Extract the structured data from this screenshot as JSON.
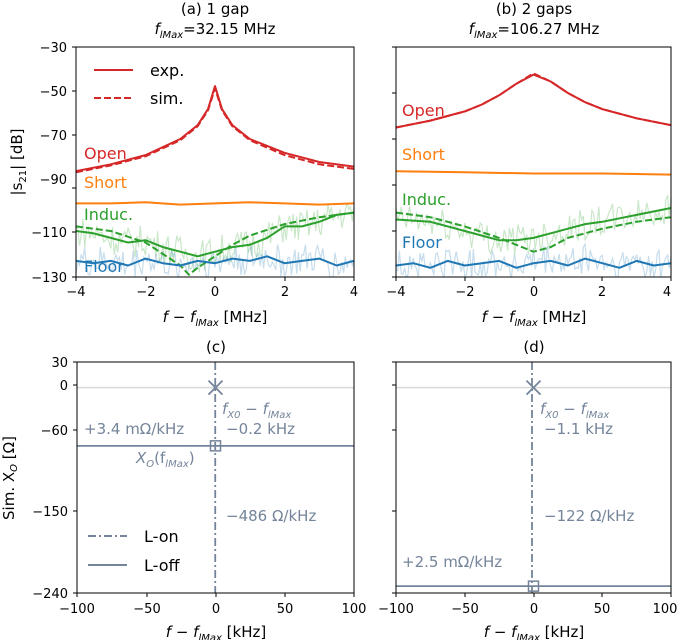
{
  "colors": {
    "open": "#d62728",
    "short": "#ff7f0e",
    "induc": "#2ca02c",
    "floor": "#1f77b4",
    "reactance": "#74849a",
    "zero_line": "#d9d9d9"
  },
  "chart_data": [
    {
      "id": "a",
      "type": "line",
      "title": "(a) 1 gap",
      "subtitle_prefix": "f",
      "subtitle_sub": "lMax",
      "subtitle_value": "=32.15 MHz",
      "xlabel": "f − f",
      "xlabel_sub": "lMax",
      "xlabel_unit": " [MHz]",
      "ylabel": "|s",
      "ylabel_sub": "21",
      "ylabel_unit": "| [dB]",
      "xlim": [
        -4,
        4
      ],
      "ylim": [
        -130,
        -30
      ],
      "xticks": [
        "−4",
        "−2",
        "0",
        "2",
        "4"
      ],
      "yticks": [
        "−30",
        "−50",
        "−70",
        "−90",
        "−110",
        "−130"
      ],
      "legend": [
        {
          "label": "exp.",
          "style": "solid"
        },
        {
          "label": "sim.",
          "style": "dashed"
        }
      ],
      "series_labels": [
        {
          "name": "open",
          "text": "Open"
        },
        {
          "name": "short",
          "text": "Short"
        },
        {
          "name": "induc",
          "text": "Induc."
        },
        {
          "name": "floor",
          "text": "Floor"
        }
      ],
      "series": [
        {
          "name": "Open exp.",
          "color_key": "open",
          "dash": false,
          "x": [
            -4,
            -3,
            -2,
            -1,
            -0.5,
            -0.2,
            0,
            0.2,
            0.5,
            1,
            2,
            3,
            4
          ],
          "y": [
            -84,
            -81,
            -77,
            -70,
            -64,
            -57,
            -47,
            -57,
            -64,
            -70,
            -76,
            -80,
            -82
          ]
        },
        {
          "name": "Open sim.",
          "color_key": "open",
          "dash": true,
          "x": [
            -4,
            -3,
            -2,
            -1,
            -0.5,
            -0.2,
            0,
            0.2,
            0.5,
            1,
            2,
            3,
            4
          ],
          "y": [
            -84.5,
            -81.5,
            -77.5,
            -70.5,
            -64.5,
            -57.5,
            -48,
            -57.5,
            -64.5,
            -70.5,
            -77,
            -81,
            -83
          ]
        },
        {
          "name": "Short exp.",
          "color_key": "short",
          "dash": false,
          "x": [
            -4,
            -3,
            -2,
            -1,
            0,
            1,
            2,
            3,
            4
          ],
          "y": [
            -98,
            -98,
            -97.5,
            -98.5,
            -98,
            -97.5,
            -98,
            -98.5,
            -98
          ]
        },
        {
          "name": "Induc. exp.",
          "color_key": "induc",
          "dash": false,
          "x": [
            -4,
            -3.5,
            -3,
            -2.5,
            -2,
            -1.5,
            -1,
            -0.5,
            0,
            0.5,
            1,
            1.5,
            2,
            2.5,
            3,
            3.5,
            4
          ],
          "y": [
            -110,
            -111,
            -113,
            -115,
            -114,
            -117,
            -119,
            -121,
            -119,
            -117,
            -116,
            -113,
            -108,
            -108,
            -106,
            -103,
            -102
          ]
        },
        {
          "name": "Induc. sim.",
          "color_key": "induc",
          "dash": true,
          "x": [
            -4,
            -3,
            -2,
            -1.5,
            -1,
            -0.75,
            -0.5,
            0,
            0.5,
            1,
            2,
            3,
            4
          ],
          "y": [
            -108,
            -110,
            -115,
            -120,
            -125,
            -129,
            -126,
            -121,
            -116,
            -112,
            -107,
            -104,
            -102
          ]
        },
        {
          "name": "Floor exp.",
          "color_key": "floor",
          "dash": false,
          "x": [
            -4,
            -3.5,
            -3,
            -2.5,
            -2,
            -1.5,
            -1,
            -0.5,
            0,
            0.5,
            1,
            1.5,
            2,
            2.5,
            3,
            3.5,
            4
          ],
          "y": [
            -123,
            -124,
            -123,
            -125,
            -122,
            -124,
            -125,
            -123,
            -124,
            -122,
            -123,
            -121,
            -124,
            -123,
            -122,
            -125,
            -123
          ]
        }
      ]
    },
    {
      "id": "b",
      "type": "line",
      "title": "(b) 2 gaps",
      "subtitle_prefix": "f",
      "subtitle_sub": "lMax",
      "subtitle_value": "=106.27 MHz",
      "xlabel": "f − f",
      "xlabel_sub": "lMax",
      "xlabel_unit": " [MHz]",
      "xlim": [
        -4,
        4
      ],
      "ylim": [
        -130,
        -30
      ],
      "xticks": [
        "−4",
        "−2",
        "0",
        "2",
        "4"
      ],
      "series_labels": [
        {
          "name": "open",
          "text": "Open"
        },
        {
          "name": "short",
          "text": "Short"
        },
        {
          "name": "induc",
          "text": "Induc."
        },
        {
          "name": "floor",
          "text": "Floor"
        }
      ],
      "series": [
        {
          "name": "Open exp.",
          "color_key": "open",
          "dash": false,
          "x": [
            -4,
            -3,
            -2,
            -1.5,
            -1,
            -0.5,
            0,
            0.5,
            1,
            1.5,
            2,
            3,
            4
          ],
          "y": [
            -65,
            -62,
            -58,
            -55,
            -51,
            -46,
            -42,
            -45,
            -50,
            -54,
            -57,
            -61,
            -64
          ]
        },
        {
          "name": "Open sim.",
          "color_key": "open",
          "dash": true,
          "x": [
            -4,
            -3,
            -2,
            -1.5,
            -1,
            -0.5,
            0,
            0.5,
            1,
            1.5,
            2,
            3,
            4
          ],
          "y": [
            -65,
            -62,
            -58,
            -55,
            -51,
            -46,
            -41.5,
            -45,
            -50,
            -54,
            -57,
            -61,
            -64
          ]
        },
        {
          "name": "Short exp.",
          "color_key": "short",
          "dash": false,
          "x": [
            -4,
            -2,
            0,
            2,
            4
          ],
          "y": [
            -84,
            -84.5,
            -85,
            -85,
            -85.5
          ]
        },
        {
          "name": "Induc. exp.",
          "color_key": "induc",
          "dash": false,
          "x": [
            -4,
            -3,
            -2,
            -1.5,
            -1,
            -0.5,
            0,
            0.5,
            1,
            1.5,
            2,
            3,
            4
          ],
          "y": [
            -105,
            -106,
            -110,
            -112,
            -114,
            -114,
            -113,
            -111,
            -109,
            -107,
            -106,
            -103,
            -100
          ]
        },
        {
          "name": "Induc. sim.",
          "color_key": "induc",
          "dash": true,
          "x": [
            -4,
            -3,
            -2,
            -1,
            -0.5,
            0,
            0.5,
            1,
            2,
            3,
            4
          ],
          "y": [
            -102,
            -104,
            -108,
            -113,
            -116,
            -119,
            -117,
            -113,
            -109,
            -106,
            -104
          ]
        },
        {
          "name": "Floor exp.",
          "color_key": "floor",
          "dash": false,
          "x": [
            -4,
            -3.5,
            -3,
            -2.5,
            -2,
            -1.5,
            -1,
            -0.5,
            0,
            0.5,
            1,
            1.5,
            2,
            2.5,
            3,
            3.5,
            4
          ],
          "y": [
            -125,
            -124,
            -126,
            -123,
            -125,
            -124,
            -123,
            -126,
            -124,
            -123,
            -125,
            -122,
            -124,
            -126,
            -123,
            -125,
            -124
          ]
        }
      ]
    },
    {
      "id": "c",
      "type": "line",
      "title": "(c)",
      "xlabel": "f − f",
      "xlabel_sub": "lMax",
      "xlabel_unit": " [kHz]",
      "ylabel": "Sim. X",
      "ylabel_sub": "O",
      "ylabel_unit": " [Ω]",
      "xlim": [
        -100,
        100
      ],
      "ylim": [
        -240,
        30
      ],
      "xticks": [
        "−100",
        "−50",
        "0",
        "50",
        "100"
      ],
      "yticks": [
        "30",
        "0",
        "−60",
        "−150",
        "−240"
      ],
      "legend": [
        {
          "label": "L-on",
          "style": "dashdot"
        },
        {
          "label": "L-off",
          "style": "solid"
        }
      ],
      "l_on": {
        "x": -0.2,
        "slope_text": "−486 Ω/kHz"
      },
      "l_off": {
        "y": -68,
        "slope_text": "+3.4 mΩ/kHz"
      },
      "marker_x": {
        "x": 0,
        "y": 0
      },
      "marker_square": {
        "x": 0,
        "y": -68
      },
      "annot_fx0_prefix": "f",
      "annot_fx0_sub1": "X0",
      "annot_fx0_mid": " − f",
      "annot_fx0_sub2": "lMax",
      "annot_offset": "−0.2 kHz",
      "annot_xo": "X",
      "annot_xo_sub": "O",
      "annot_xo_arg": "(f",
      "annot_xo_arg_sub": "lMax",
      "annot_xo_close": ")"
    },
    {
      "id": "d",
      "type": "line",
      "title": "(d)",
      "xlabel": "f − f",
      "xlabel_sub": "lMax",
      "xlabel_unit": " [kHz]",
      "xlim": [
        -100,
        100
      ],
      "ylim": [
        -240,
        30
      ],
      "xticks": [
        "−100",
        "−50",
        "0",
        "50",
        "100"
      ],
      "l_on": {
        "x": -1.1,
        "slope_text": "−122 Ω/kHz"
      },
      "l_off": {
        "y": -232,
        "slope_text": "+2.5 mΩ/kHz"
      },
      "marker_x": {
        "x": 0,
        "y": 0
      },
      "marker_square": {
        "x": 0,
        "y": -232
      },
      "annot_fx0_prefix": "f",
      "annot_fx0_sub1": "X0",
      "annot_fx0_mid": " − f",
      "annot_fx0_sub2": "lMax",
      "annot_offset": "−1.1 kHz"
    }
  ]
}
